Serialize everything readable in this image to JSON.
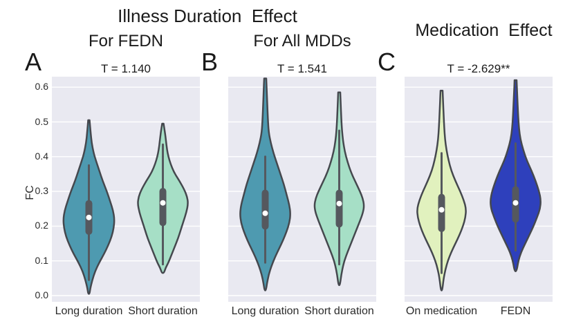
{
  "header": {
    "illness_title": "Illness Duration  Effect",
    "medication_title": "Medication  Effect"
  },
  "axis": {
    "ylabel": "FC",
    "ytick_labels": [
      "0.0",
      "0.1",
      "0.2",
      "0.3",
      "0.4",
      "0.5",
      "0.6"
    ],
    "ymin": 0.0,
    "ymax": 0.6,
    "grid": true
  },
  "style": {
    "panel_bg": "#e9e9f1",
    "grid_color": "#ffffff",
    "outline_color": "#45484e",
    "box_color": "#55585e",
    "median_dot_color": "#ffffff",
    "text_color": "#1a1a1a"
  },
  "chart_data": [
    {
      "type": "violin",
      "panel_letter": "A",
      "group_title": "For FEDN",
      "stat_label": "T = 1.140",
      "ylabel": "FC",
      "ylim": [
        0.0,
        0.6
      ],
      "categories": [
        "Long duration",
        "Short duration"
      ],
      "violins": [
        {
          "category": "Long duration",
          "fill": "#4e9ab0",
          "median": 0.225,
          "q1": 0.175,
          "q3": 0.275,
          "whisker_low": 0.045,
          "whisker_high": 0.375,
          "range": [
            0.005,
            0.505
          ],
          "profile": [
            [
              0.505,
              1
            ],
            [
              0.47,
              2.5
            ],
            [
              0.44,
              4
            ],
            [
              0.41,
              7
            ],
            [
              0.39,
              10
            ],
            [
              0.36,
              15
            ],
            [
              0.33,
              20
            ],
            [
              0.3,
              26
            ],
            [
              0.27,
              31
            ],
            [
              0.245,
              35
            ],
            [
              0.22,
              37
            ],
            [
              0.195,
              36
            ],
            [
              0.17,
              33
            ],
            [
              0.145,
              28
            ],
            [
              0.12,
              22
            ],
            [
              0.095,
              15
            ],
            [
              0.07,
              9
            ],
            [
              0.045,
              5
            ],
            [
              0.02,
              2
            ],
            [
              0.005,
              1
            ]
          ]
        },
        {
          "category": "Short duration",
          "fill": "#a6dfc6",
          "median": 0.267,
          "q1": 0.2,
          "q3": 0.31,
          "whisker_low": 0.09,
          "whisker_high": 0.435,
          "range": [
            0.065,
            0.495
          ],
          "profile": [
            [
              0.495,
              1
            ],
            [
              0.47,
              3
            ],
            [
              0.445,
              4.5
            ],
            [
              0.42,
              6
            ],
            [
              0.4,
              8
            ],
            [
              0.38,
              11
            ],
            [
              0.355,
              16
            ],
            [
              0.33,
              24
            ],
            [
              0.305,
              31
            ],
            [
              0.285,
              35
            ],
            [
              0.265,
              36.5
            ],
            [
              0.24,
              34
            ],
            [
              0.215,
              30
            ],
            [
              0.19,
              26
            ],
            [
              0.165,
              22
            ],
            [
              0.14,
              17
            ],
            [
              0.115,
              12
            ],
            [
              0.095,
              8
            ],
            [
              0.08,
              4
            ],
            [
              0.065,
              1.5
            ]
          ]
        }
      ]
    },
    {
      "type": "violin",
      "panel_letter": "B",
      "group_title": "For All MDDs",
      "stat_label": "T = 1.541",
      "ylabel": "FC",
      "ylim": [
        0.0,
        0.6
      ],
      "categories": [
        "Long duration",
        "Short duration"
      ],
      "violins": [
        {
          "category": "Long duration",
          "fill": "#4e9ab0",
          "median": 0.237,
          "q1": 0.19,
          "q3": 0.305,
          "whisker_low": 0.095,
          "whisker_high": 0.4,
          "range": [
            0.015,
            0.625
          ],
          "profile": [
            [
              0.625,
              1.5
            ],
            [
              0.59,
              2.2
            ],
            [
              0.55,
              3
            ],
            [
              0.51,
              3.8
            ],
            [
              0.47,
              5
            ],
            [
              0.44,
              8
            ],
            [
              0.41,
              12
            ],
            [
              0.38,
              17
            ],
            [
              0.35,
              22
            ],
            [
              0.32,
              27
            ],
            [
              0.29,
              31
            ],
            [
              0.26,
              35
            ],
            [
              0.235,
              36.5
            ],
            [
              0.21,
              35
            ],
            [
              0.185,
              31
            ],
            [
              0.16,
              26
            ],
            [
              0.135,
              20
            ],
            [
              0.11,
              14
            ],
            [
              0.085,
              9
            ],
            [
              0.06,
              5
            ],
            [
              0.035,
              2.5
            ],
            [
              0.015,
              1
            ]
          ]
        },
        {
          "category": "Short duration",
          "fill": "#a6dfc6",
          "median": 0.265,
          "q1": 0.196,
          "q3": 0.305,
          "whisker_low": 0.09,
          "whisker_high": 0.475,
          "range": [
            0.03,
            0.585
          ],
          "profile": [
            [
              0.585,
              1.5
            ],
            [
              0.55,
              2.2
            ],
            [
              0.51,
              3
            ],
            [
              0.475,
              4
            ],
            [
              0.445,
              5.5
            ],
            [
              0.415,
              8
            ],
            [
              0.385,
              12
            ],
            [
              0.355,
              17
            ],
            [
              0.325,
              24
            ],
            [
              0.3,
              30
            ],
            [
              0.28,
              34
            ],
            [
              0.26,
              36
            ],
            [
              0.24,
              34.5
            ],
            [
              0.215,
              30
            ],
            [
              0.19,
              25
            ],
            [
              0.165,
              20
            ],
            [
              0.14,
              15
            ],
            [
              0.115,
              10
            ],
            [
              0.09,
              6
            ],
            [
              0.06,
              3
            ],
            [
              0.03,
              1
            ]
          ]
        }
      ]
    },
    {
      "type": "violin",
      "panel_letter": "C",
      "group_title": "",
      "stat_label": "T = -2.629**",
      "ylabel": "FC",
      "ylim": [
        0.0,
        0.6
      ],
      "categories": [
        "On medication",
        "FEDN"
      ],
      "violins": [
        {
          "category": "On medication",
          "fill": "#e1f1be",
          "median": 0.247,
          "q1": 0.183,
          "q3": 0.293,
          "whisker_low": 0.065,
          "whisker_high": 0.41,
          "range": [
            0.015,
            0.59
          ],
          "profile": [
            [
              0.59,
              1.5
            ],
            [
              0.555,
              2.2
            ],
            [
              0.52,
              3
            ],
            [
              0.485,
              3.8
            ],
            [
              0.45,
              5
            ],
            [
              0.42,
              7
            ],
            [
              0.39,
              10
            ],
            [
              0.36,
              14
            ],
            [
              0.33,
              20
            ],
            [
              0.3,
              27
            ],
            [
              0.275,
              32
            ],
            [
              0.25,
              35.5
            ],
            [
              0.225,
              34.5
            ],
            [
              0.2,
              31
            ],
            [
              0.175,
              26
            ],
            [
              0.15,
              20
            ],
            [
              0.125,
              14
            ],
            [
              0.1,
              9
            ],
            [
              0.075,
              5.5
            ],
            [
              0.05,
              3
            ],
            [
              0.015,
              1
            ]
          ]
        },
        {
          "category": "FEDN",
          "fill": "#2e40bc",
          "median": 0.267,
          "q1": 0.21,
          "q3": 0.315,
          "whisker_low": 0.13,
          "whisker_high": 0.438,
          "range": [
            0.07,
            0.62
          ],
          "profile": [
            [
              0.62,
              1.5
            ],
            [
              0.585,
              2.2
            ],
            [
              0.55,
              3
            ],
            [
              0.515,
              3.8
            ],
            [
              0.48,
              5
            ],
            [
              0.45,
              7
            ],
            [
              0.42,
              11
            ],
            [
              0.39,
              16
            ],
            [
              0.36,
              23
            ],
            [
              0.33,
              29
            ],
            [
              0.3,
              34
            ],
            [
              0.275,
              36.5
            ],
            [
              0.25,
              35.5
            ],
            [
              0.225,
              31
            ],
            [
              0.2,
              26
            ],
            [
              0.175,
              20
            ],
            [
              0.15,
              14
            ],
            [
              0.125,
              8
            ],
            [
              0.1,
              4
            ],
            [
              0.07,
              1.5
            ]
          ]
        }
      ]
    }
  ]
}
